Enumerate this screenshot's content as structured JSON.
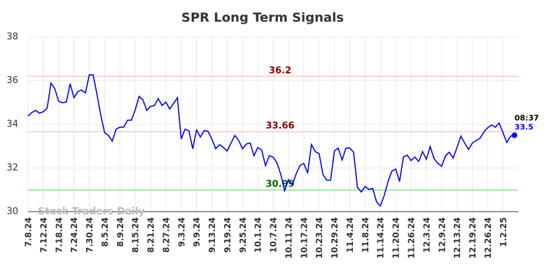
{
  "chart_data": {
    "type": "line",
    "title": "SPR Long Term Signals",
    "x": [
      "7.8.24",
      null,
      null,
      null,
      "7.12.24",
      null,
      null,
      null,
      "7.18.24",
      null,
      null,
      null,
      "7.24.24",
      null,
      null,
      null,
      "7.30.24",
      null,
      null,
      null,
      "8.5.24",
      null,
      null,
      null,
      "8.9.24",
      null,
      null,
      null,
      "8.15.24",
      null,
      null,
      null,
      "8.21.24",
      null,
      null,
      null,
      "8.27.24",
      null,
      null,
      null,
      "9.3.24",
      null,
      null,
      null,
      "9.9.24",
      null,
      null,
      null,
      "9.13.24",
      null,
      null,
      null,
      "9.19.24",
      null,
      null,
      null,
      "9.25.24",
      null,
      null,
      null,
      "10.1.24",
      null,
      null,
      null,
      "10.7.24",
      null,
      null,
      null,
      "10.11.24",
      null,
      null,
      null,
      "10.17.24",
      null,
      null,
      null,
      "10.23.24",
      null,
      null,
      null,
      "10.29.24",
      null,
      null,
      null,
      "11.4.24",
      null,
      null,
      null,
      "11.8.24",
      null,
      null,
      null,
      "11.14.24",
      null,
      null,
      null,
      "11.20.24",
      null,
      null,
      null,
      "11.26.24",
      null,
      null,
      null,
      "12.3.24",
      null,
      null,
      null,
      "12.9.24",
      null,
      null,
      null,
      "12.13.24",
      null,
      null,
      null,
      "12.19.24",
      null,
      null,
      null,
      "12.26.24",
      null,
      null,
      null,
      "1.2.25",
      null,
      null,
      null
    ],
    "values": [
      34.38,
      34.54,
      34.64,
      34.51,
      34.58,
      34.74,
      35.89,
      35.63,
      35.06,
      34.99,
      35.02,
      35.86,
      35.22,
      35.5,
      35.57,
      35.44,
      36.27,
      36.27,
      35.38,
      34.42,
      33.62,
      33.49,
      33.23,
      33.78,
      33.87,
      33.87,
      34.19,
      34.19,
      34.67,
      35.28,
      35.12,
      34.64,
      34.83,
      34.86,
      35.18,
      34.86,
      35.02,
      34.7,
      34.96,
      35.22,
      33.33,
      33.78,
      33.71,
      32.88,
      33.74,
      33.42,
      33.71,
      33.68,
      33.33,
      32.88,
      33.07,
      32.94,
      32.78,
      33.14,
      33.49,
      33.26,
      32.88,
      33.1,
      33.14,
      32.56,
      32.94,
      32.82,
      32.11,
      32.56,
      32.5,
      32.24,
      31.7,
      30.96,
      31.47,
      31.22,
      31.73,
      32.11,
      32.21,
      31.76,
      33.07,
      32.75,
      32.66,
      31.7,
      31.44,
      31.44,
      32.78,
      32.91,
      32.37,
      32.91,
      32.91,
      32.72,
      31.12,
      30.9,
      31.15,
      31.02,
      31.06,
      30.45,
      30.26,
      30.74,
      31.38,
      31.86,
      31.95,
      31.38,
      32.5,
      32.59,
      32.34,
      32.5,
      32.3,
      32.75,
      32.4,
      32.98,
      32.43,
      32.21,
      32.08,
      32.56,
      32.72,
      32.46,
      32.94,
      33.46,
      33.14,
      32.85,
      33.14,
      33.26,
      33.36,
      33.65,
      33.84,
      33.97,
      33.87,
      34.06,
      33.62,
      33.17,
      33.46,
      33.5
    ],
    "color": "#0000ee",
    "ylim": [
      30,
      38
    ],
    "yticks": [
      30,
      32,
      34,
      36,
      38
    ],
    "grid": true,
    "hlines": [
      {
        "value": 36.2,
        "color": "#ffc8c8",
        "label_color": "#8b0000"
      },
      {
        "value": 33.66,
        "color": "#ffc8c8",
        "label_color": "#8b0000"
      },
      {
        "value": 30.99,
        "color": "#90e090",
        "label_color": "#006400"
      }
    ],
    "last_time": "08:37",
    "watermark": "Stock Traders Daily"
  }
}
